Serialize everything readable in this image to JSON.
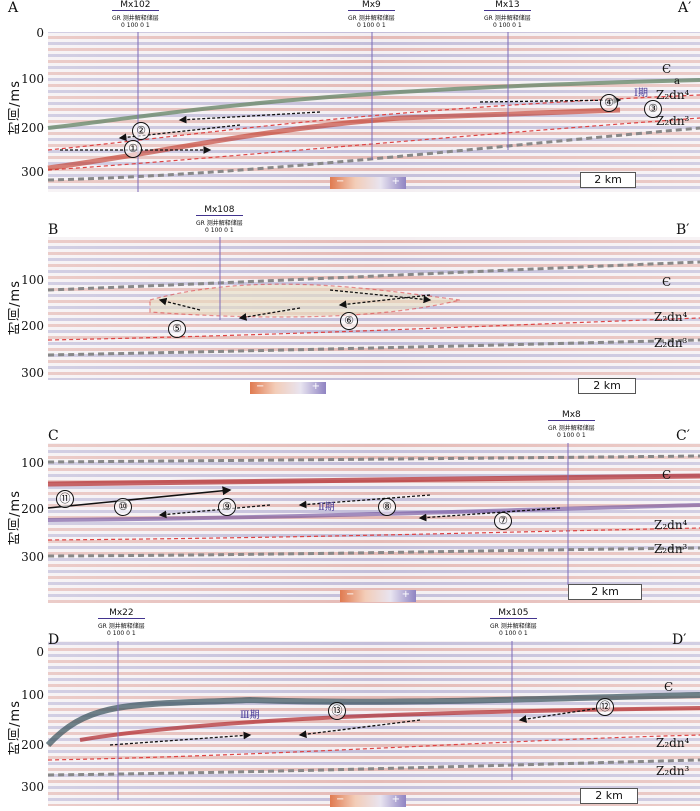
{
  "axis": {
    "ylabel": "时间/ms",
    "ticks": [
      "0",
      "100",
      "200",
      "300"
    ]
  },
  "well_sub": "GR  测井解释储层",
  "well_scale": "0  100 0    1",
  "scalebar": "2 km",
  "colorbar": {
    "minus": "−",
    "plus": "+"
  },
  "panels": [
    {
      "left": "A",
      "right": "A′",
      "wells": [
        "Mx102",
        "Mx9",
        "Mx13"
      ],
      "formations": [
        "Є",
        "Z₂dn⁴",
        "Z₂dn³"
      ],
      "bodies": [
        "①",
        "②",
        "③",
        "④"
      ],
      "period": "Ⅰ期",
      "marker": "a"
    },
    {
      "left": "B",
      "right": "B′",
      "wells": [
        "Mx108"
      ],
      "formations": [
        "Є",
        "Z₂dn⁴",
        "Z₂dn³"
      ],
      "bodies": [
        "⑤",
        "⑥"
      ],
      "period": ""
    },
    {
      "left": "C",
      "right": "C′",
      "wells": [
        "Mx8"
      ],
      "formations": [
        "Є",
        "Z₂dn⁴",
        "Z₂dn³"
      ],
      "bodies": [
        "⑦",
        "⑧",
        "⑨",
        "⑩",
        "⑪"
      ],
      "period": "Ⅱ期"
    },
    {
      "left": "D",
      "right": "D′",
      "wells": [
        "Mx22",
        "Mx105"
      ],
      "formations": [
        "Є",
        "Z₂dn⁴",
        "Z₂dn³"
      ],
      "bodies": [
        "⑫",
        "⑬"
      ],
      "period": "Ⅲ期"
    }
  ]
}
